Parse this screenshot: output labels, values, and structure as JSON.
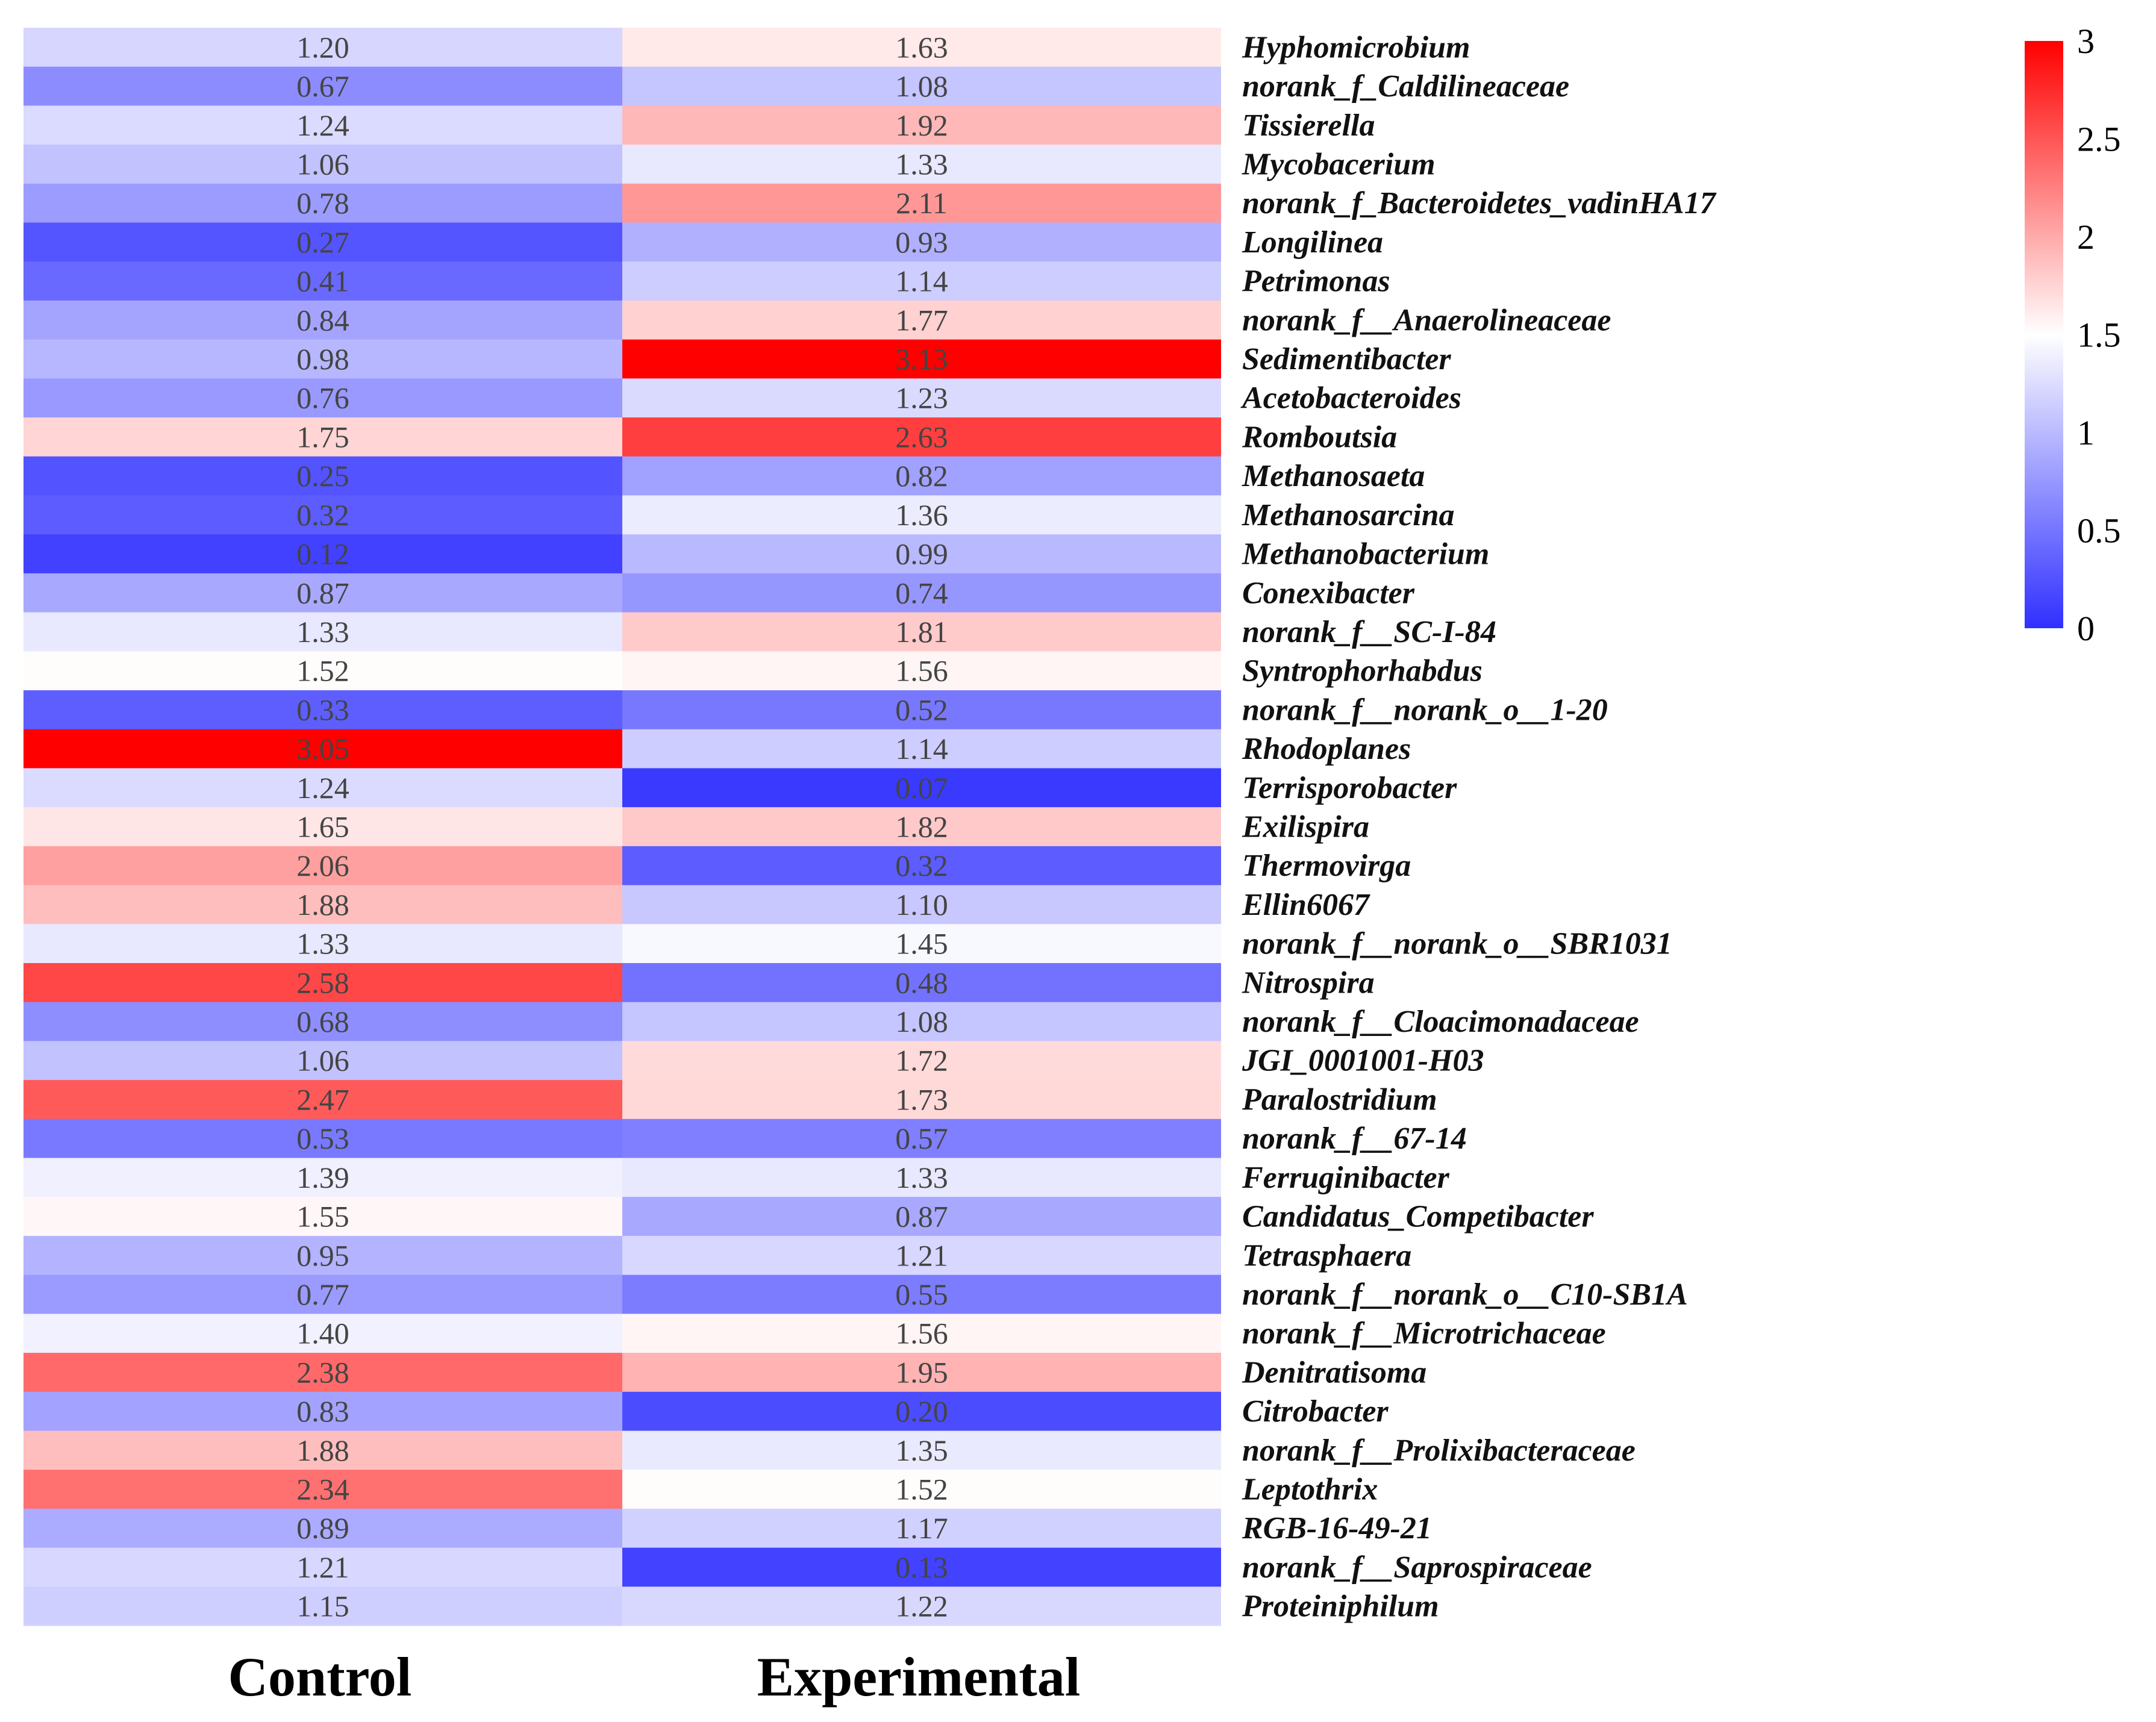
{
  "chart_data": {
    "type": "heatmap",
    "title": "",
    "columns": [
      "Control",
      "Experimental"
    ],
    "rows": [
      "Hyphomicrobium",
      "norank_f_Caldilineaceae",
      "Tissierella",
      "Mycobacerium",
      "norank_f_Bacteroidetes_vadinHA17",
      "Longilinea",
      "Petrimonas",
      "norank_f__Anaerolineaceae",
      "Sedimentibacter",
      "Acetobacteroides",
      "Romboutsia",
      "Methanosaeta",
      "Methanosarcina",
      "Methanobacterium",
      "Conexibacter",
      "norank_f__SC-I-84",
      "Syntrophorhabdus",
      "norank_f__norank_o__1-20",
      "Rhodoplanes",
      "Terrisporobacter",
      "Exilispira",
      "Thermovirga",
      "Ellin6067",
      "norank_f__norank_o__SBR1031",
      "Nitrospira",
      "norank_f__Cloacimonadaceae",
      "JGI_0001001-H03",
      "Paralostridium",
      "norank_f__67-14",
      "Ferruginibacter",
      "Candidatus_Competibacter",
      "Tetrasphaera",
      "norank_f__norank_o__C10-SB1A",
      "norank_f__Microtrichaceae",
      "Denitratisoma",
      "Citrobacter",
      "norank_f__Prolixibacteraceae",
      "Leptothrix",
      "RGB-16-49-21",
      "norank_f__Saprospiraceae",
      "Proteiniphilum"
    ],
    "values": [
      [
        "1.20",
        "1.63"
      ],
      [
        "0.67",
        "1.08"
      ],
      [
        "1.24",
        "1.92"
      ],
      [
        "1.06",
        "1.33"
      ],
      [
        "0.78",
        "2.11"
      ],
      [
        "0.27",
        "0.93"
      ],
      [
        "0.41",
        "1.14"
      ],
      [
        "0.84",
        "1.77"
      ],
      [
        "0.98",
        "3.13"
      ],
      [
        "0.76",
        "1.23"
      ],
      [
        "1.75",
        "2.63"
      ],
      [
        "0.25",
        "0.82"
      ],
      [
        "0.32",
        "1.36"
      ],
      [
        "0.12",
        "0.99"
      ],
      [
        "0.87",
        "0.74"
      ],
      [
        "1.33",
        "1.81"
      ],
      [
        "1.52",
        "1.56"
      ],
      [
        "0.33",
        "0.52"
      ],
      [
        "3.05",
        "1.14"
      ],
      [
        "1.24",
        "0.07"
      ],
      [
        "1.65",
        "1.82"
      ],
      [
        "2.06",
        "0.32"
      ],
      [
        "1.88",
        "1.10"
      ],
      [
        "1.33",
        "1.45"
      ],
      [
        "2.58",
        "0.48"
      ],
      [
        "0.68",
        "1.08"
      ],
      [
        "1.06",
        "1.72"
      ],
      [
        "2.47",
        "1.73"
      ],
      [
        "0.53",
        "0.57"
      ],
      [
        "1.39",
        "1.33"
      ],
      [
        "1.55",
        "0.87"
      ],
      [
        "0.95",
        "1.21"
      ],
      [
        "0.77",
        "0.55"
      ],
      [
        "1.40",
        "1.56"
      ],
      [
        "2.38",
        "1.95"
      ],
      [
        "0.83",
        "0.20"
      ],
      [
        "1.88",
        "1.35"
      ],
      [
        "2.34",
        "1.52"
      ],
      [
        "0.89",
        "1.17"
      ],
      [
        "1.21",
        "0.13"
      ],
      [
        "1.15",
        "1.22"
      ]
    ],
    "colorscale": {
      "range": [
        0,
        3
      ],
      "ticks": [
        "0",
        "0.5",
        "1",
        "1.5",
        "2",
        "2.5",
        "3"
      ],
      "low_color": "#3030ff",
      "mid_color": "#ffffff",
      "high_color": "#ff0000",
      "position": "top-right"
    }
  }
}
